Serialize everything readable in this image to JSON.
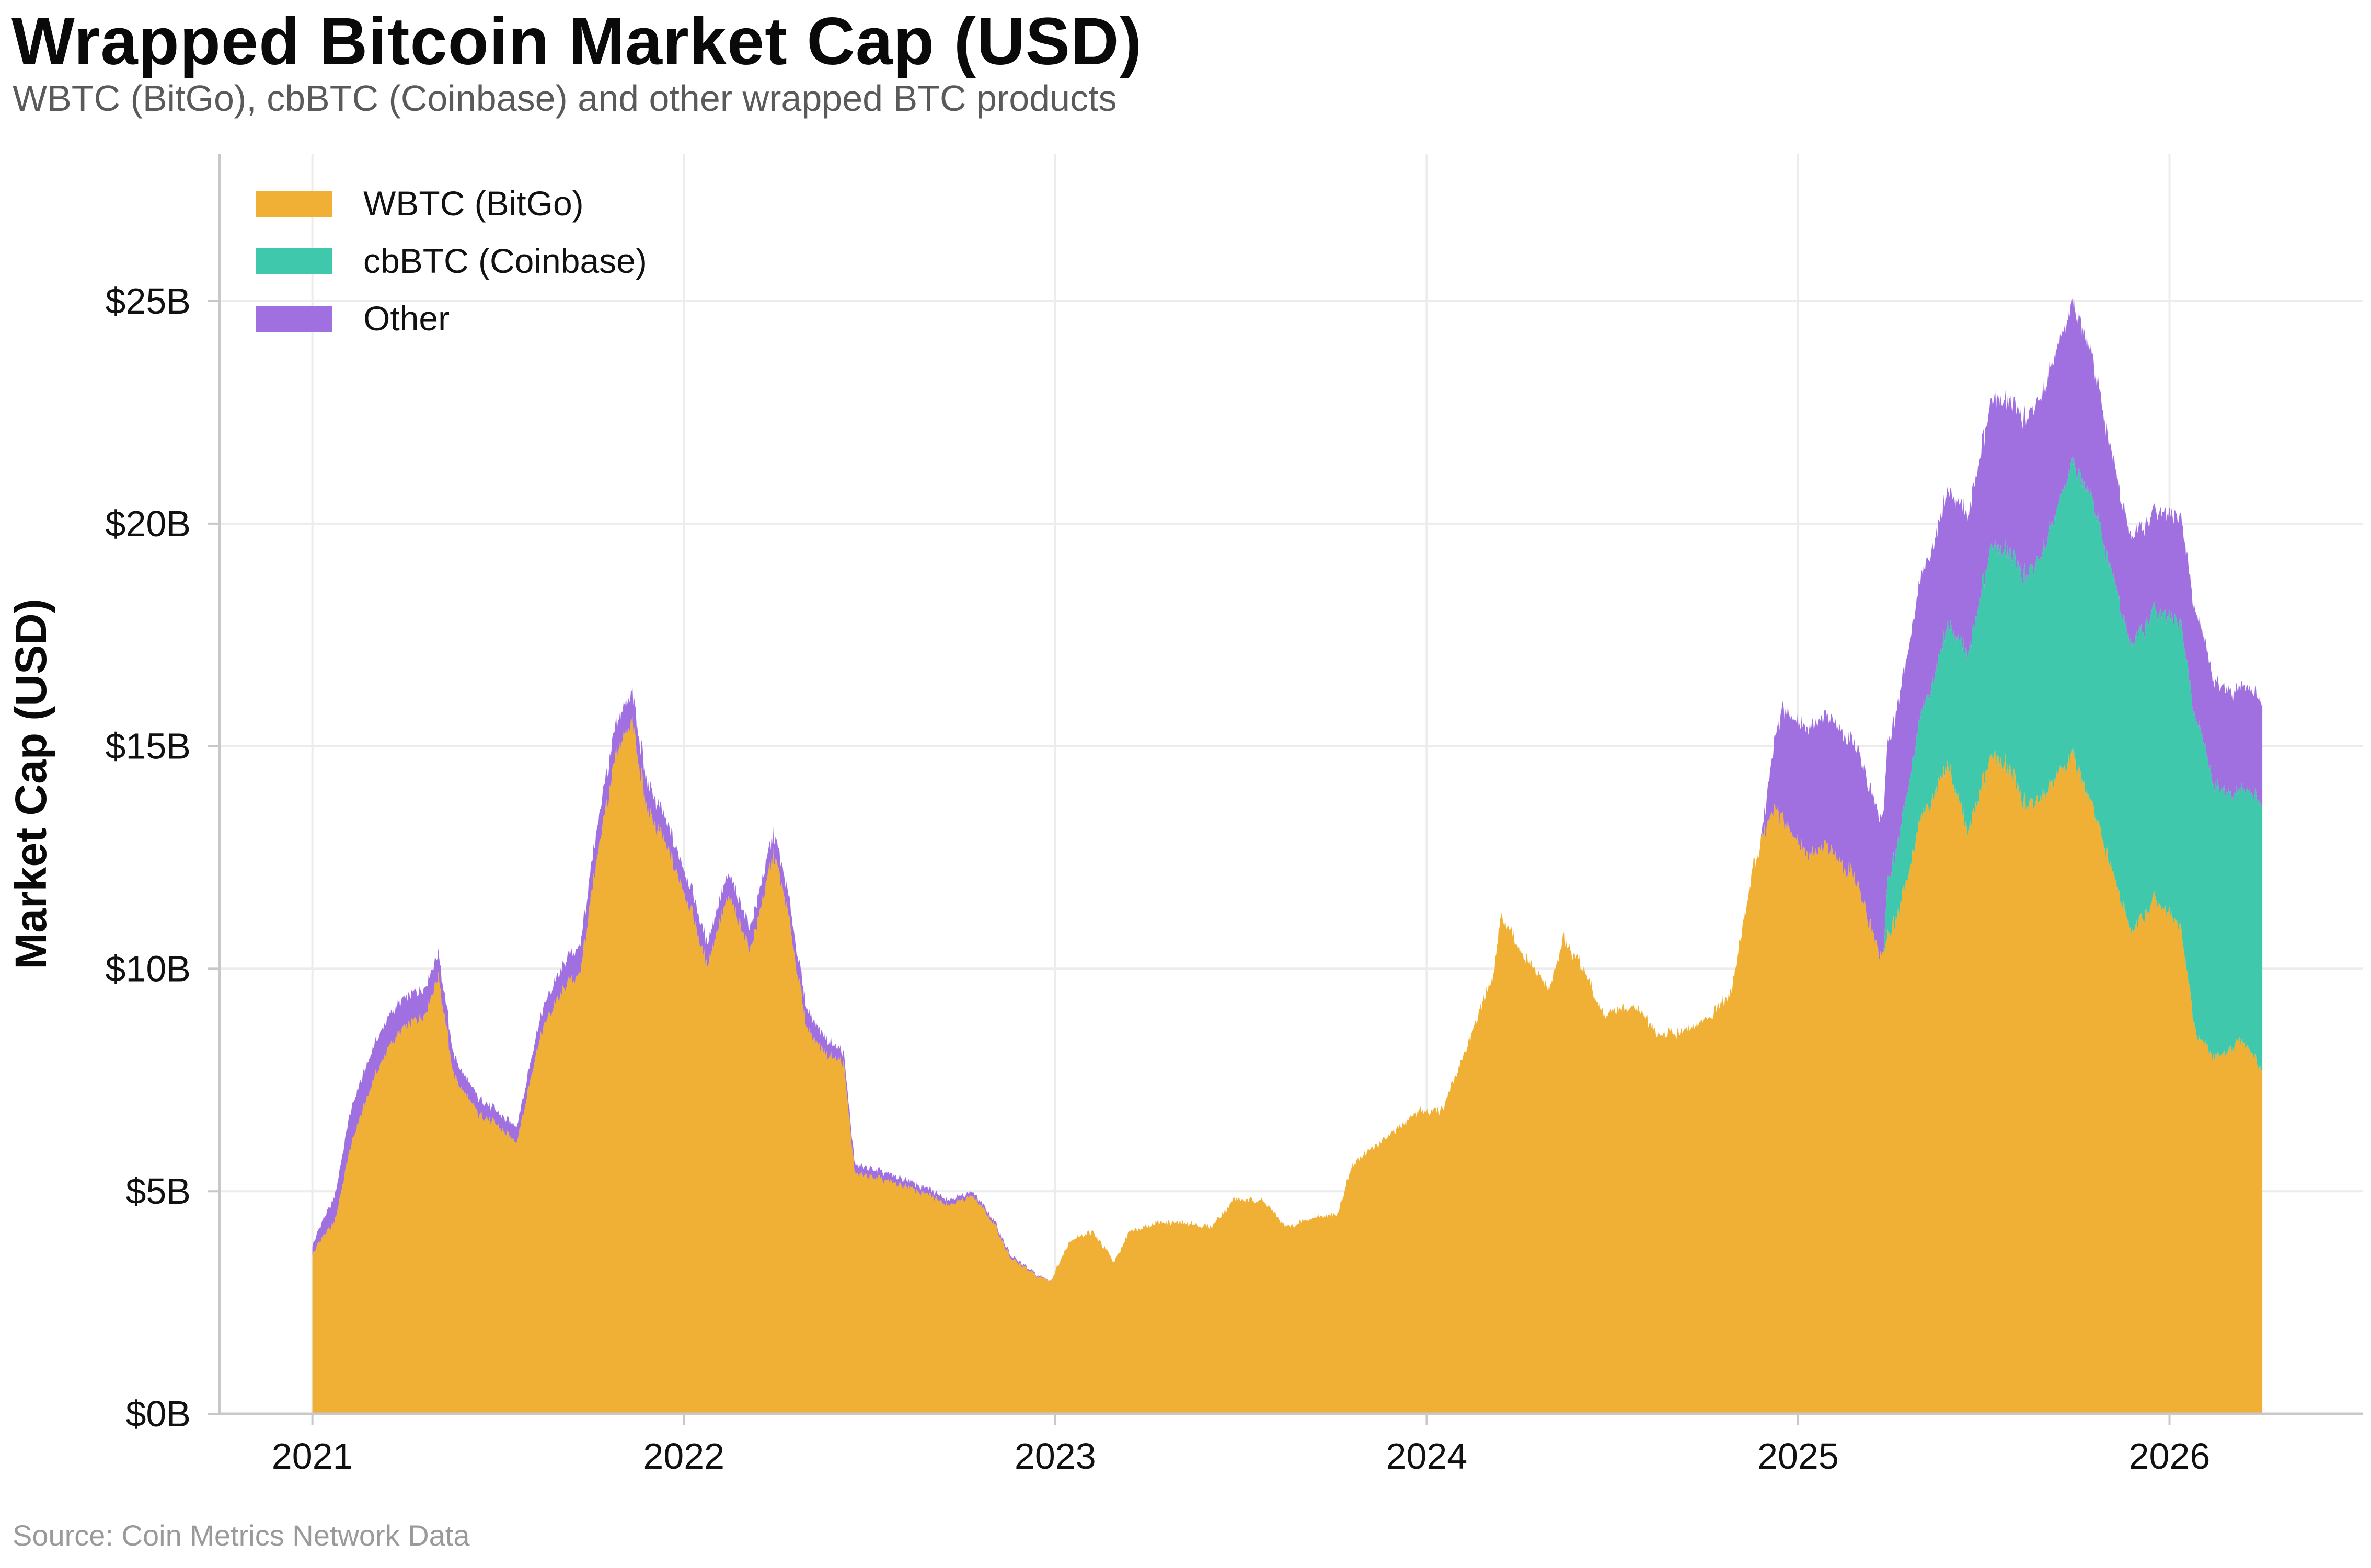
{
  "chart_data": {
    "type": "area",
    "stacked": true,
    "title": "Wrapped Bitcoin Market Cap (USD)",
    "subtitle": "WBTC (BitGo), cbBTC (Coinbase) and other wrapped BTC products",
    "source": "Source: Coin Metrics Network Data",
    "xlabel": "",
    "ylabel": "Market Cap (USD)",
    "xlim": [
      2020.75,
      2026.52
    ],
    "ylim": [
      0,
      28.3
    ],
    "x_ticks": [
      2021,
      2022,
      2023,
      2024,
      2025,
      2026
    ],
    "x_tick_labels": [
      "2021",
      "2022",
      "2023",
      "2024",
      "2025",
      "2026"
    ],
    "y_ticks": [
      0,
      5,
      10,
      15,
      20,
      25
    ],
    "y_tick_labels": [
      "$0B",
      "$5B",
      "$10B",
      "$15B",
      "$20B",
      "$25B"
    ],
    "grid": true,
    "legend_position": "top-left",
    "units": "billions USD",
    "series": [
      {
        "name": "WBTC (BitGo)",
        "color": "#F0AF35",
        "points": [
          [
            2021.0,
            3.6
          ],
          [
            2021.03,
            4.0
          ],
          [
            2021.06,
            4.3
          ],
          [
            2021.1,
            5.9
          ],
          [
            2021.15,
            7.2
          ],
          [
            2021.2,
            8.2
          ],
          [
            2021.25,
            8.7
          ],
          [
            2021.3,
            9.0
          ],
          [
            2021.34,
            9.8
          ],
          [
            2021.38,
            7.6
          ],
          [
            2021.45,
            6.7
          ],
          [
            2021.5,
            6.5
          ],
          [
            2021.55,
            6.1
          ],
          [
            2021.62,
            8.7
          ],
          [
            2021.68,
            9.6
          ],
          [
            2021.72,
            9.9
          ],
          [
            2021.78,
            13.2
          ],
          [
            2021.82,
            14.8
          ],
          [
            2021.86,
            15.6
          ],
          [
            2021.9,
            13.6
          ],
          [
            2021.96,
            12.6
          ],
          [
            2022.02,
            11.3
          ],
          [
            2022.06,
            10.1
          ],
          [
            2022.12,
            11.6
          ],
          [
            2022.18,
            10.4
          ],
          [
            2022.24,
            12.6
          ],
          [
            2022.28,
            11.3
          ],
          [
            2022.33,
            8.7
          ],
          [
            2022.38,
            8.1
          ],
          [
            2022.43,
            7.9
          ],
          [
            2022.46,
            5.4
          ],
          [
            2022.52,
            5.3
          ],
          [
            2022.6,
            5.1
          ],
          [
            2022.66,
            4.9
          ],
          [
            2022.72,
            4.7
          ],
          [
            2022.78,
            4.9
          ],
          [
            2022.84,
            4.2
          ],
          [
            2022.88,
            3.5
          ],
          [
            2022.95,
            3.1
          ],
          [
            2022.99,
            3.0
          ],
          [
            2023.04,
            3.9
          ],
          [
            2023.1,
            4.1
          ],
          [
            2023.16,
            3.4
          ],
          [
            2023.2,
            4.1
          ],
          [
            2023.28,
            4.3
          ],
          [
            2023.34,
            4.3
          ],
          [
            2023.42,
            4.2
          ],
          [
            2023.48,
            4.8
          ],
          [
            2023.56,
            4.8
          ],
          [
            2023.62,
            4.2
          ],
          [
            2023.7,
            4.4
          ],
          [
            2023.76,
            4.5
          ],
          [
            2023.8,
            5.6
          ],
          [
            2023.86,
            6.0
          ],
          [
            2023.92,
            6.4
          ],
          [
            2023.98,
            6.8
          ],
          [
            2024.04,
            6.8
          ],
          [
            2024.12,
            8.5
          ],
          [
            2024.18,
            9.9
          ],
          [
            2024.2,
            11.2
          ],
          [
            2024.27,
            10.2
          ],
          [
            2024.33,
            9.5
          ],
          [
            2024.37,
            10.7
          ],
          [
            2024.42,
            10.0
          ],
          [
            2024.48,
            8.9
          ],
          [
            2024.56,
            9.2
          ],
          [
            2024.62,
            8.5
          ],
          [
            2024.7,
            8.6
          ],
          [
            2024.76,
            8.9
          ],
          [
            2024.82,
            9.5
          ],
          [
            2024.88,
            12.3
          ],
          [
            2024.93,
            13.6
          ],
          [
            2024.97,
            13.2
          ],
          [
            2025.02,
            12.6
          ],
          [
            2025.08,
            12.7
          ],
          [
            2025.14,
            12.2
          ],
          [
            2025.18,
            11.4
          ],
          [
            2025.22,
            10.2
          ],
          [
            2025.27,
            11.3
          ],
          [
            2025.33,
            13.3
          ],
          [
            2025.4,
            14.6
          ],
          [
            2025.46,
            13.1
          ],
          [
            2025.52,
            14.8
          ],
          [
            2025.56,
            14.6
          ],
          [
            2025.62,
            13.6
          ],
          [
            2025.7,
            14.3
          ],
          [
            2025.74,
            14.9
          ],
          [
            2025.79,
            13.7
          ],
          [
            2025.86,
            11.8
          ],
          [
            2025.9,
            10.8
          ],
          [
            2025.96,
            11.6
          ],
          [
            2026.03,
            10.9
          ],
          [
            2026.07,
            8.6
          ],
          [
            2026.12,
            8.0
          ],
          [
            2026.16,
            8.2
          ],
          [
            2026.2,
            8.4
          ],
          [
            2026.25,
            7.7
          ]
        ]
      },
      {
        "name": "cbBTC (Coinbase)",
        "color": "#40C8AC",
        "points": [
          [
            2021.0,
            0.0
          ],
          [
            2025.23,
            0.0
          ],
          [
            2025.24,
            1.2
          ],
          [
            2025.3,
            2.0
          ],
          [
            2025.38,
            2.8
          ],
          [
            2025.45,
            3.9
          ],
          [
            2025.52,
            4.7
          ],
          [
            2025.58,
            4.9
          ],
          [
            2025.66,
            5.5
          ],
          [
            2025.72,
            6.3
          ],
          [
            2025.78,
            6.9
          ],
          [
            2025.84,
            6.7
          ],
          [
            2025.9,
            6.4
          ],
          [
            2025.96,
            6.5
          ],
          [
            2026.02,
            6.8
          ],
          [
            2026.08,
            7.0
          ],
          [
            2026.12,
            6.1
          ],
          [
            2026.18,
            5.6
          ],
          [
            2026.25,
            6.0
          ]
        ]
      },
      {
        "name": "Other",
        "color": "#A070E0",
        "points": [
          [
            2021.0,
            0.2
          ],
          [
            2021.1,
            0.8
          ],
          [
            2021.2,
            0.7
          ],
          [
            2021.3,
            0.6
          ],
          [
            2021.4,
            0.4
          ],
          [
            2021.5,
            0.3
          ],
          [
            2021.6,
            0.4
          ],
          [
            2021.7,
            0.6
          ],
          [
            2021.8,
            0.7
          ],
          [
            2021.9,
            0.6
          ],
          [
            2022.0,
            0.5
          ],
          [
            2022.2,
            0.5
          ],
          [
            2022.35,
            0.4
          ],
          [
            2022.45,
            0.2
          ],
          [
            2022.6,
            0.15
          ],
          [
            2022.75,
            0.1
          ],
          [
            2022.9,
            0.05
          ],
          [
            2023.0,
            0.0
          ],
          [
            2024.9,
            0.0
          ],
          [
            2024.96,
            2.5
          ],
          [
            2025.05,
            2.9
          ],
          [
            2025.15,
            3.0
          ],
          [
            2025.22,
            3.1
          ],
          [
            2025.3,
            3.1
          ],
          [
            2025.4,
            3.0
          ],
          [
            2025.5,
            3.2
          ],
          [
            2025.6,
            3.5
          ],
          [
            2025.7,
            3.6
          ],
          [
            2025.76,
            3.5
          ],
          [
            2025.85,
            2.6
          ],
          [
            2025.95,
            2.2
          ],
          [
            2026.05,
            2.4
          ],
          [
            2026.15,
            2.3
          ],
          [
            2026.25,
            2.3
          ]
        ]
      }
    ]
  }
}
